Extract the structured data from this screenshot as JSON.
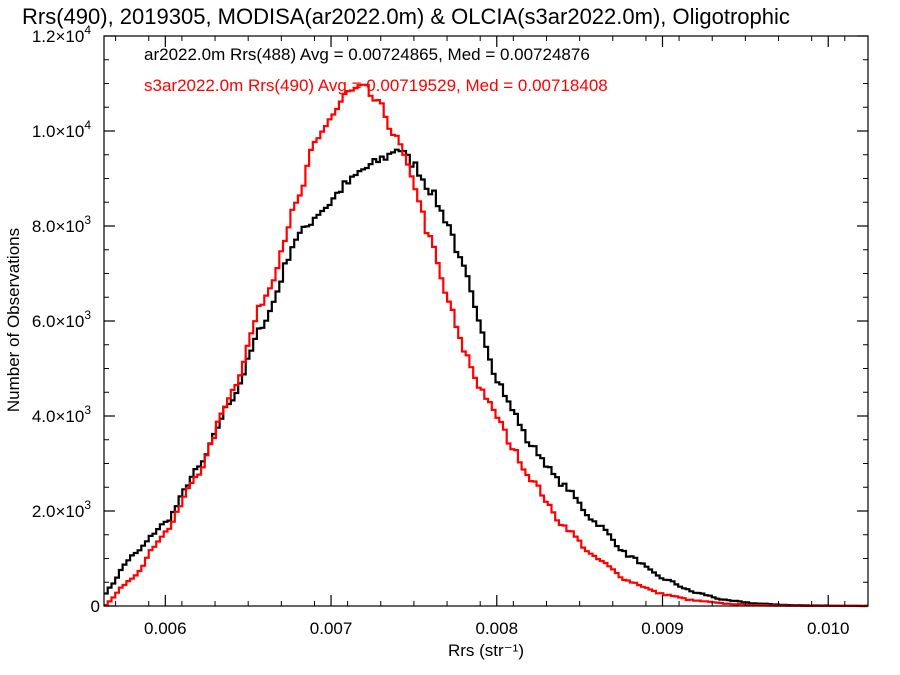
{
  "chart_data": {
    "type": "step-histogram",
    "title": "Rrs(490), 2019305, MODISA(ar2022.0m) & OLCIA(s3ar2022.0m), Oligotrophic",
    "xlabel": "Rrs (str⁻¹)",
    "ylabel": "Number of Observations",
    "xlim": [
      0.00563,
      0.01024
    ],
    "ylim": [
      0,
      12000
    ],
    "x_ticks": [
      0.006,
      0.007,
      0.008,
      0.009,
      0.01
    ],
    "x_tick_labels": [
      "0.006",
      "0.007",
      "0.008",
      "0.009",
      "0.010"
    ],
    "y_ticks": [
      0,
      2000,
      4000,
      6000,
      8000,
      10000,
      12000
    ],
    "y_tick_labels": [
      {
        "mantissa": "0",
        "exp": ""
      },
      {
        "mantissa": "2.0×10",
        "exp": "3"
      },
      {
        "mantissa": "4.0×10",
        "exp": "3"
      },
      {
        "mantissa": "6.0×10",
        "exp": "3"
      },
      {
        "mantissa": "8.0×10",
        "exp": "3"
      },
      {
        "mantissa": "1.0×10",
        "exp": "4"
      },
      {
        "mantissa": "1.2×10",
        "exp": "4"
      }
    ],
    "grid": false,
    "legend_placement": "top-left",
    "series": [
      {
        "name": "ar2022.0m Rrs(488) Avg = 0.00724865, Med = 0.00724876",
        "color": "#000000",
        "x": [
          0.00563,
          0.0058,
          0.006,
          0.0062,
          0.0064,
          0.0066,
          0.0068,
          0.00695,
          0.0071,
          0.0072,
          0.00733,
          0.0074,
          0.0075,
          0.0076,
          0.0077,
          0.0078,
          0.0079,
          0.008,
          0.0081,
          0.0082,
          0.0084,
          0.0086,
          0.0088,
          0.009,
          0.0092,
          0.0094,
          0.0096,
          0.0098,
          0.01024
        ],
        "y": [
          250,
          1050,
          1750,
          2900,
          4350,
          6000,
          7800,
          8350,
          8900,
          9200,
          9450,
          9650,
          9300,
          8750,
          8100,
          7100,
          5900,
          4800,
          4100,
          3400,
          2550,
          1750,
          1050,
          580,
          280,
          110,
          45,
          15,
          0
        ]
      },
      {
        "name": "s3ar2022.0m Rrs(490) Avg = 0.00719529, Med = 0.00718408",
        "color": "#ff0000",
        "x": [
          0.00563,
          0.0058,
          0.006,
          0.0062,
          0.0064,
          0.0066,
          0.0068,
          0.0069,
          0.007,
          0.0071,
          0.0072,
          0.0073,
          0.0074,
          0.0075,
          0.0076,
          0.0077,
          0.0078,
          0.0079,
          0.008,
          0.0081,
          0.0082,
          0.0084,
          0.0086,
          0.0088,
          0.009,
          0.0092,
          0.0094,
          0.0096,
          0.0098,
          0.01024
        ],
        "y": [
          0,
          600,
          1550,
          2800,
          4500,
          6500,
          8500,
          9700,
          10300,
          10800,
          10900,
          10500,
          9800,
          8900,
          7700,
          6500,
          5400,
          4600,
          4000,
          3300,
          2700,
          1700,
          1000,
          520,
          250,
          110,
          45,
          15,
          5,
          0
        ]
      }
    ]
  }
}
